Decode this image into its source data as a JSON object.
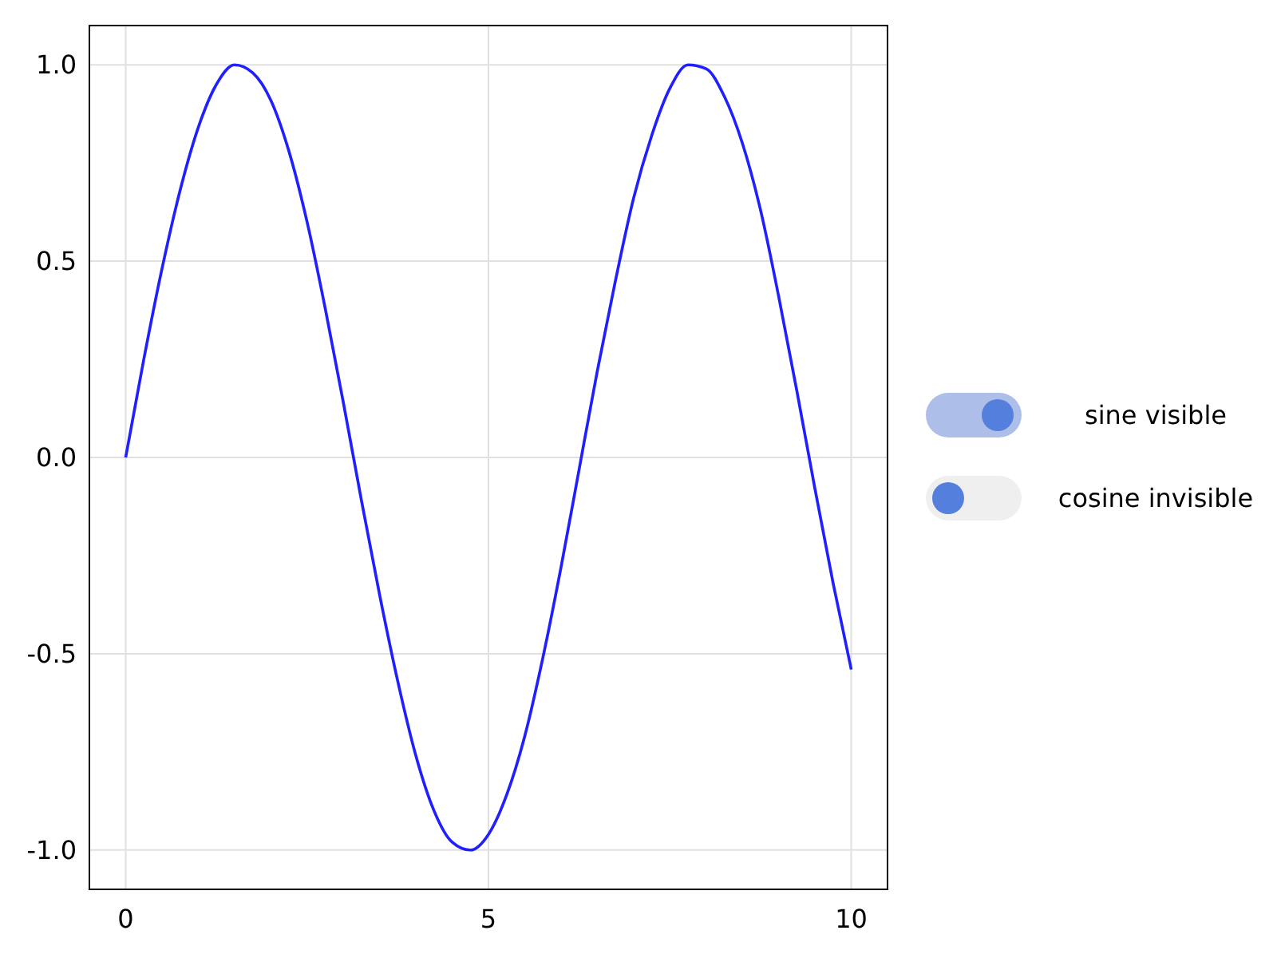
{
  "chart_data": {
    "type": "line",
    "x": [
      0,
      0.25,
      0.5,
      0.75,
      1,
      1.25,
      1.5,
      1.75,
      2,
      2.25,
      2.5,
      2.75,
      3,
      3.25,
      3.5,
      3.75,
      4,
      4.25,
      4.5,
      4.75,
      5,
      5.25,
      5.5,
      5.75,
      6,
      6.25,
      6.5,
      6.75,
      7,
      7.25,
      7.5,
      7.75,
      8,
      8.25,
      8.5,
      8.75,
      9,
      9.25,
      9.5,
      9.75,
      10
    ],
    "series": [
      {
        "color": "#1f1fff",
        "values": [
          0,
          0.25,
          0.48,
          0.68,
          0.84,
          0.95,
          1.0,
          0.98,
          0.91,
          0.78,
          0.6,
          0.38,
          0.14,
          -0.11,
          -0.35,
          -0.57,
          -0.76,
          -0.9,
          -0.98,
          -1.0,
          -0.96,
          -0.86,
          -0.71,
          -0.51,
          -0.28,
          -0.03,
          0.22,
          0.45,
          0.66,
          0.82,
          0.94,
          1.0,
          0.99,
          0.92,
          0.8,
          0.63,
          0.41,
          0.17,
          -0.08,
          -0.32,
          -0.54
        ]
      }
    ],
    "xlim": [
      -0.5,
      10.5
    ],
    "ylim": [
      -1.1,
      1.1
    ],
    "xticks": [
      0,
      5,
      10
    ],
    "yticks": [
      {
        "value": 1,
        "label": "1.0"
      },
      {
        "value": 0.5,
        "label": "0.5"
      },
      {
        "value": 0,
        "label": "0.0"
      },
      {
        "value": -0.5,
        "label": "-0.5"
      },
      {
        "value": -1,
        "label": "-1.0"
      }
    ],
    "grid": true,
    "marker": "none",
    "line_style": "solid",
    "annotations": [
      "sine visible",
      "cosine invisible"
    ]
  }
}
